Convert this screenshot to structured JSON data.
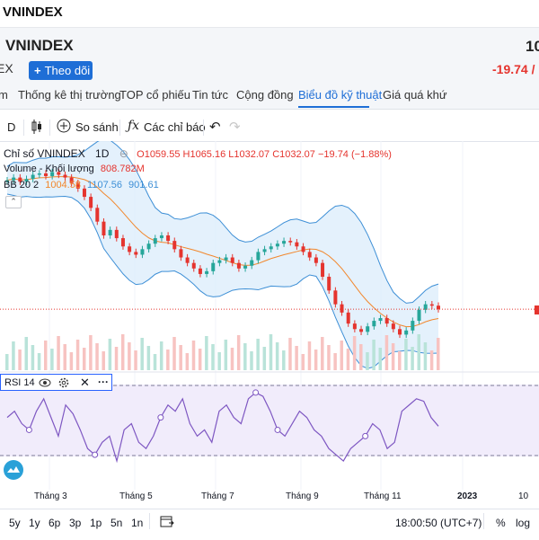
{
  "window": {
    "title": "VNINDEX"
  },
  "header": {
    "name": "VNINDEX",
    "subtitle": "EX",
    "follow_label": "Theo dõi",
    "price": "10",
    "change": "-19.74 /"
  },
  "tabs": [
    {
      "label": "m"
    },
    {
      "label": "Thống kê thị trường"
    },
    {
      "label": "TOP cổ phiếu"
    },
    {
      "label": "Tin tức"
    },
    {
      "label": "Cộng đồng"
    },
    {
      "label": "Biểu đồ kỹ thuật"
    },
    {
      "label": "Giá quá khứ"
    }
  ],
  "toolbar": {
    "interval": "D",
    "compare_label": "So sánh",
    "indicators_label": "Các chỉ báo"
  },
  "legend": {
    "symbol": "Chỉ số VNINDEX",
    "interval": "1D",
    "ohlc": "O1059.55 H1065.16 L1032.07 C1032.07 −19.74 (−1.88%)",
    "volume_label": "Volume - Khối lượng",
    "volume_value": "808.782M",
    "bb_label": "BB 20 2",
    "bb_mid": "1004.58",
    "bb_upper": "1107.56",
    "bb_lower": "901.61"
  },
  "rsi": {
    "label": "RSI 14"
  },
  "x_axis": [
    "Tháng 3",
    "Tháng 5",
    "Tháng 7",
    "Tháng 9",
    "Tháng 11",
    "2023",
    "10"
  ],
  "bottom": {
    "ranges": [
      "5y",
      "1y",
      "6p",
      "3p",
      "1p",
      "5n",
      "1n"
    ],
    "time": "18:00:50 (UTC+7)",
    "percent": "%",
    "log": "log"
  },
  "colors": {
    "accent": "#1e6ed6",
    "down": "#e5342e",
    "up": "#26a69a",
    "bb": "#3d8fd6",
    "ma": "#f2872c",
    "rsi": "#7e57c2"
  },
  "chart_data": {
    "type": "line",
    "close": [
      1500,
      1510,
      1495,
      1505,
      1520,
      1525,
      1515,
      1530,
      1520,
      1510,
      1490,
      1470,
      1440,
      1400,
      1350,
      1300,
      1320,
      1290,
      1260,
      1240,
      1230,
      1250,
      1270,
      1290,
      1300,
      1280,
      1250,
      1220,
      1200,
      1180,
      1160,
      1170,
      1200,
      1210,
      1220,
      1200,
      1180,
      1190,
      1210,
      1240,
      1250,
      1260,
      1270,
      1280,
      1275,
      1260,
      1240,
      1220,
      1200,
      1150,
      1100,
      1050,
      1020,
      980,
      960,
      950,
      970,
      990,
      1000,
      980,
      960,
      940,
      955,
      990,
      1030,
      1050,
      1045,
      1032
    ],
    "rsi": [
      55,
      60,
      50,
      45,
      60,
      70,
      55,
      40,
      65,
      58,
      45,
      30,
      25,
      35,
      40,
      20,
      45,
      50,
      35,
      30,
      40,
      55,
      65,
      60,
      70,
      50,
      40,
      45,
      35,
      60,
      65,
      55,
      50,
      70,
      75,
      72,
      60,
      45,
      40,
      50,
      60,
      55,
      45,
      40,
      30,
      25,
      20,
      30,
      35,
      40,
      50,
      45,
      30,
      35,
      60,
      65,
      70,
      68,
      55,
      48
    ]
  }
}
